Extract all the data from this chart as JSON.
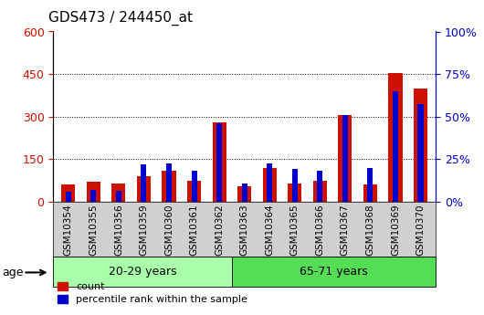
{
  "title": "GDS473 / 244450_at",
  "samples": [
    "GSM10354",
    "GSM10355",
    "GSM10356",
    "GSM10359",
    "GSM10360",
    "GSM10361",
    "GSM10362",
    "GSM10363",
    "GSM10364",
    "GSM10365",
    "GSM10366",
    "GSM10367",
    "GSM10368",
    "GSM10369",
    "GSM10370"
  ],
  "count_vals": [
    60,
    70,
    65,
    90,
    110,
    75,
    280,
    55,
    120,
    65,
    75,
    305,
    60,
    455,
    400
  ],
  "pct_vals": [
    35,
    40,
    38,
    130,
    135,
    110,
    275,
    65,
    135,
    115,
    110,
    305,
    120,
    390,
    345
  ],
  "groups": [
    {
      "label": "20-29 years",
      "start": 0,
      "end": 7,
      "color": "#aaffaa"
    },
    {
      "label": "65-71 years",
      "start": 7,
      "end": 15,
      "color": "#55dd55"
    }
  ],
  "age_label": "age",
  "left_ylim": [
    0,
    600
  ],
  "right_ylim": [
    0,
    100
  ],
  "left_yticks": [
    0,
    150,
    300,
    450,
    600
  ],
  "right_yticks": [
    0,
    25,
    50,
    75,
    100
  ],
  "right_yticklabels": [
    "0%",
    "25%",
    "50%",
    "75%",
    "100%"
  ],
  "bar_color_count": "#cc1100",
  "bar_color_pct": "#0000cc",
  "legend_count": "count",
  "legend_pct": "percentile rank within the sample",
  "grid_yticks": [
    150,
    300,
    450
  ]
}
